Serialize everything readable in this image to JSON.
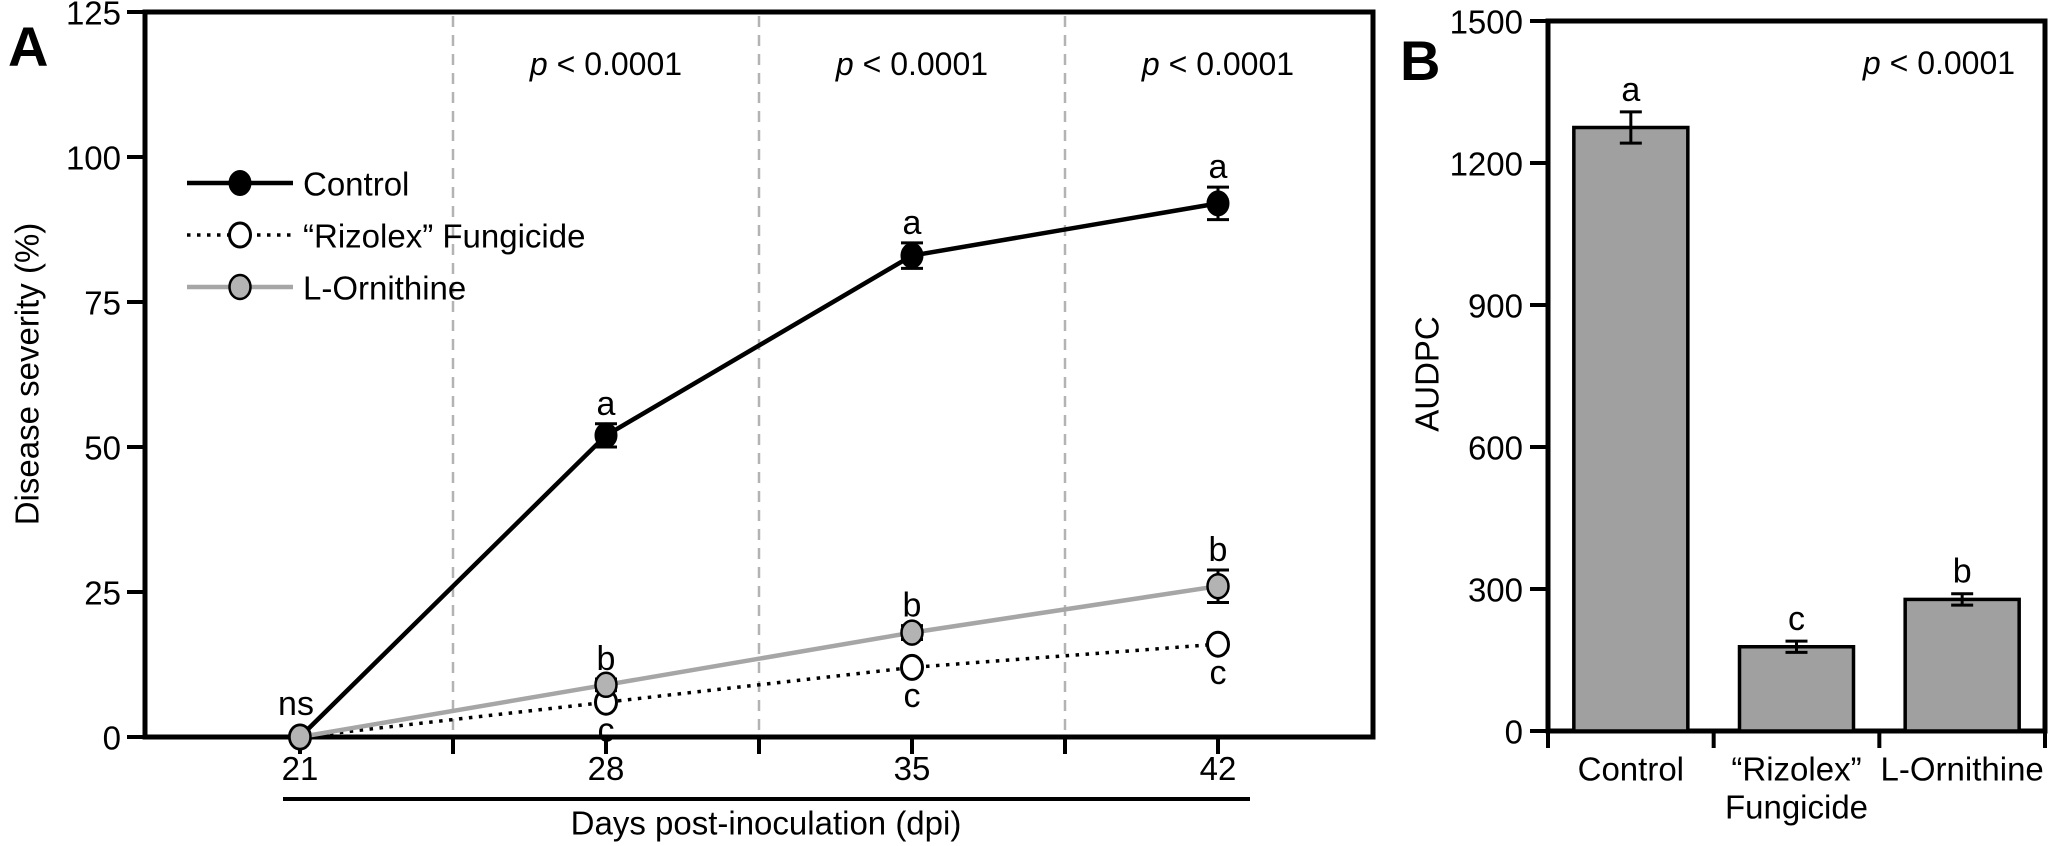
{
  "panel_labels": [
    "A",
    "B"
  ],
  "colors": {
    "black": "#000000",
    "gray_line": "#a6a6a6",
    "gray_marker": "#b3b3b3",
    "bar_fill": "#a0a0a0",
    "gridline": "#b3b3b3",
    "background": "#ffffff"
  },
  "chart_data": [
    {
      "type": "line",
      "panel": "A",
      "title": "",
      "xlabel": "Days post-inoculation (dpi)",
      "ylabel": "Disease severity (%)",
      "x": [
        21,
        28,
        35,
        42
      ],
      "x_tick_labels": [
        "21",
        "28",
        "35",
        "42"
      ],
      "xlim": [
        17.5,
        45.5
      ],
      "ylim": [
        0,
        125
      ],
      "yticks": [
        0,
        25,
        50,
        75,
        100,
        125
      ],
      "x_minor_ticks": [
        24.5,
        31.5,
        38.5
      ],
      "gridlines_x": [
        24.5,
        31.5,
        38.5
      ],
      "grid": "vertical-dashed-only",
      "legend_position": "upper-left-inside",
      "series": [
        {
          "name": "Control",
          "line": "solid-black",
          "marker": "filled-black-circle",
          "values": [
            0,
            52,
            83,
            92
          ],
          "errors": [
            0,
            2,
            2.2,
            2.8
          ],
          "sig_letters": [
            "",
            "a",
            "a",
            "a"
          ],
          "letter_side": [
            "",
            "above",
            "above",
            "above"
          ]
        },
        {
          "name": "“Rizolex” Fungicide",
          "line": "dotted-black",
          "marker": "open-circle",
          "values": [
            0,
            6,
            12,
            16
          ],
          "errors": [
            0,
            0.7,
            0.8,
            0.8
          ],
          "sig_letters": [
            "",
            "c",
            "c",
            "c"
          ],
          "letter_side": [
            "",
            "below",
            "below",
            "below"
          ]
        },
        {
          "name": "L-Ornithine",
          "line": "solid-gray",
          "marker": "filled-gray-circle",
          "values": [
            0,
            9,
            18,
            26
          ],
          "errors": [
            0,
            1,
            1.2,
            2.8
          ],
          "sig_letters": [
            "",
            "b",
            "b",
            "b"
          ],
          "letter_side": [
            "",
            "above",
            "above",
            "above"
          ]
        }
      ],
      "annotations": {
        "shared_start_label": "ns",
        "p_labels": [
          {
            "x": 28,
            "text": "p < 0.0001"
          },
          {
            "x": 35,
            "text": "p < 0.0001"
          },
          {
            "x": 42,
            "text": "p < 0.0001"
          }
        ]
      }
    },
    {
      "type": "bar",
      "panel": "B",
      "title": "",
      "xlabel": "",
      "ylabel": "AUDPC",
      "categories": [
        [
          "Control"
        ],
        [
          "“Rizolex”",
          "Fungicide"
        ],
        [
          "L-Ornithine"
        ]
      ],
      "values": [
        1275,
        178,
        278
      ],
      "errors": [
        33,
        12,
        12
      ],
      "sig_letters": [
        "a",
        "c",
        "b"
      ],
      "ylim": [
        0,
        1500
      ],
      "yticks": [
        0,
        300,
        600,
        900,
        1200,
        1500
      ],
      "bar_color": "#a0a0a0",
      "p_label": "p < 0.0001"
    }
  ]
}
